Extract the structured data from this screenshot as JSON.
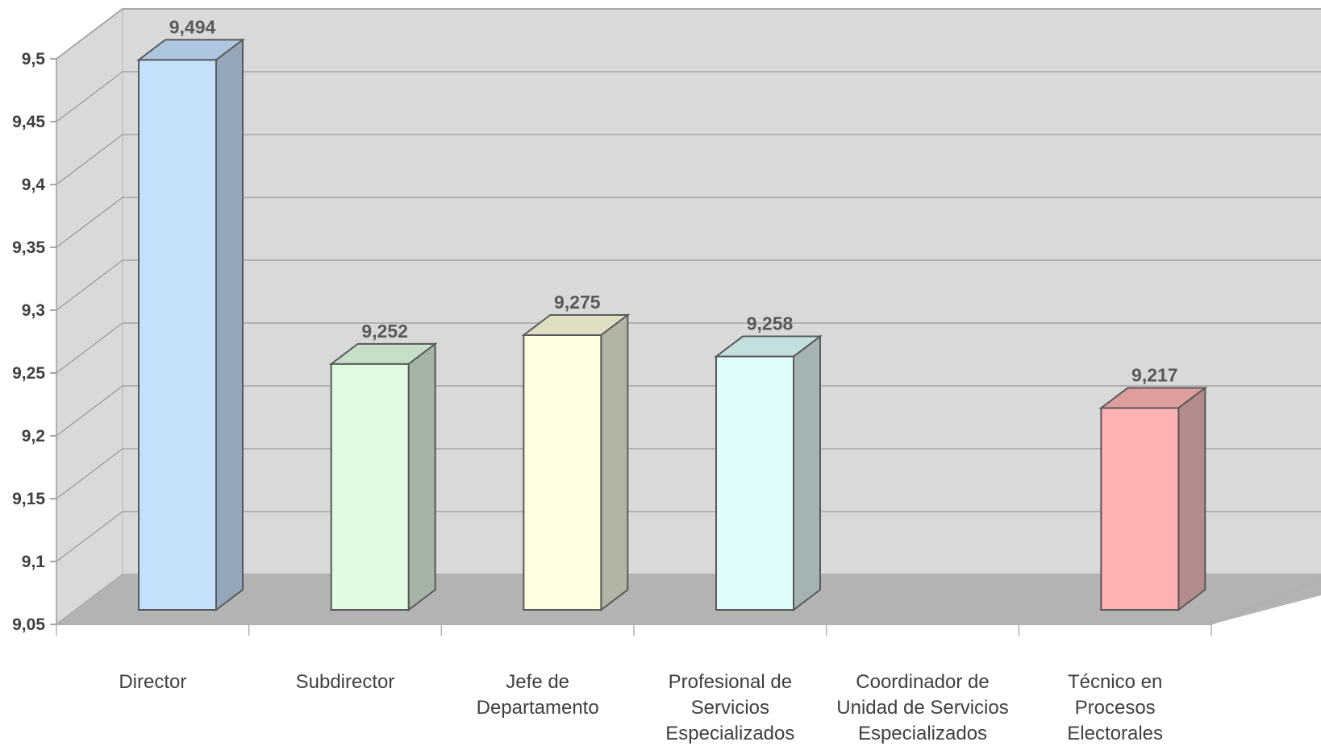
{
  "chart_data": {
    "type": "bar",
    "style": "3d-clustered-column",
    "title": "",
    "xlabel": "",
    "ylabel": "",
    "ylim": [
      9.05,
      9.5
    ],
    "yticks": [
      "9,05",
      "9,1",
      "9,15",
      "9,2",
      "9,25",
      "9,3",
      "9,35",
      "9,4",
      "9,45",
      "9,5"
    ],
    "grid": true,
    "legend": "none",
    "categories": [
      [
        "Director"
      ],
      [
        "Subdirector"
      ],
      [
        "Jefe de",
        "Departamento"
      ],
      [
        "Profesional de",
        "Servicios",
        "Especializados"
      ],
      [
        "Coordinador de",
        "Unidad de Servicios",
        "Especializados"
      ],
      [
        "Técnico en",
        "Procesos",
        "Electorales"
      ]
    ],
    "values": [
      9.494,
      9.252,
      9.275,
      9.258,
      null,
      9.217
    ],
    "value_labels": [
      "9,494",
      "9,252",
      "9,275",
      "9,258",
      "",
      "9,217"
    ],
    "colors": {
      "front": [
        "#c5e0fb",
        "#e0fbe0",
        "#fffee0",
        "#e0fdfd",
        "#ffffff",
        "#feb2b3"
      ],
      "top": [
        "#aec6df",
        "#c6dfc6",
        "#e0dfc4",
        "#c3dfe0",
        "#ffffff",
        "#df9e9e"
      ],
      "side": [
        "#95a6ba",
        "#a4b5a6",
        "#b4b4a4",
        "#a4b4b5",
        "#ffffff",
        "#b48b8b"
      ],
      "wall": "#d9d9d9",
      "floor": "#b3b3b3",
      "gridline": "#8a8a8a",
      "outline": "#595959"
    }
  }
}
